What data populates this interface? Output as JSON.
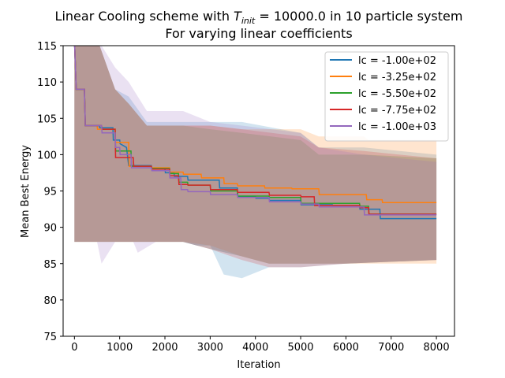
{
  "chart_data": {
    "type": "line",
    "title_line1_prefix": "Linear Cooling scheme with ",
    "title_T": "T",
    "title_subscript": "init",
    "title_line1_suffix": " = 10000.0 in 10 particle system",
    "title_line2": "For varying linear coefficients",
    "xlabel": "Iteration",
    "ylabel": "Mean Best Energy",
    "xlim": [
      -250,
      8400
    ],
    "ylim": [
      75,
      115
    ],
    "xticks": [
      0,
      1000,
      2000,
      3000,
      4000,
      5000,
      6000,
      7000,
      8000
    ],
    "yticks": [
      75,
      80,
      85,
      90,
      95,
      100,
      105,
      110,
      115
    ],
    "legend_position": "top-right",
    "series": [
      {
        "name": "lc = -1.00e+02",
        "color": "#1f77b4",
        "points": [
          [
            0,
            116
          ],
          [
            40,
            109
          ],
          [
            220,
            109
          ],
          [
            240,
            104
          ],
          [
            550,
            104
          ],
          [
            560,
            103.7
          ],
          [
            850,
            103.7
          ],
          [
            860,
            102
          ],
          [
            1000,
            102
          ],
          [
            1010,
            101.5
          ],
          [
            1150,
            101
          ],
          [
            1200,
            98.5
          ],
          [
            1700,
            98.5
          ],
          [
            1710,
            98
          ],
          [
            2000,
            98
          ],
          [
            2010,
            97.5
          ],
          [
            2200,
            97.5
          ],
          [
            2210,
            97
          ],
          [
            2500,
            97
          ],
          [
            2510,
            96.5
          ],
          [
            3200,
            96.5
          ],
          [
            3210,
            95.4
          ],
          [
            3600,
            95.4
          ],
          [
            3610,
            94.2
          ],
          [
            4000,
            94.2
          ],
          [
            4010,
            94.0
          ],
          [
            4300,
            94.0
          ],
          [
            4310,
            93.7
          ],
          [
            5000,
            93.7
          ],
          [
            5010,
            93.1
          ],
          [
            5700,
            93.1
          ],
          [
            5710,
            93.0
          ],
          [
            6300,
            93.0
          ],
          [
            6310,
            92.5
          ],
          [
            6750,
            92.5
          ],
          [
            6760,
            91.2
          ],
          [
            8000,
            91.2
          ]
        ],
        "band_upper": [
          [
            0,
            116
          ],
          [
            500,
            116
          ],
          [
            900,
            109
          ],
          [
            1200,
            108
          ],
          [
            1600,
            104.5
          ],
          [
            2400,
            104.5
          ],
          [
            2700,
            104.5
          ],
          [
            3000,
            104.5
          ],
          [
            3700,
            104.5
          ],
          [
            5000,
            103
          ],
          [
            5400,
            101
          ],
          [
            6400,
            101
          ],
          [
            8000,
            100
          ]
        ],
        "band_lower": [
          [
            0,
            88
          ],
          [
            500,
            88
          ],
          [
            900,
            88
          ],
          [
            1200,
            88
          ],
          [
            1600,
            88
          ],
          [
            2400,
            88
          ],
          [
            2700,
            87.5
          ],
          [
            3000,
            87.5
          ],
          [
            3300,
            83.5
          ],
          [
            3700,
            83
          ],
          [
            4300,
            84.5
          ],
          [
            5000,
            84.5
          ],
          [
            6000,
            85
          ],
          [
            8000,
            85.5
          ]
        ]
      },
      {
        "name": "lc = -3.25e+02",
        "color": "#ff7f0e",
        "points": [
          [
            0,
            116
          ],
          [
            40,
            109
          ],
          [
            220,
            109
          ],
          [
            240,
            104
          ],
          [
            500,
            104
          ],
          [
            510,
            103.5
          ],
          [
            900,
            103.5
          ],
          [
            910,
            101.7
          ],
          [
            1200,
            101.7
          ],
          [
            1210,
            98.4
          ],
          [
            1700,
            98.4
          ],
          [
            1710,
            98.2
          ],
          [
            2100,
            98.2
          ],
          [
            2110,
            97.6
          ],
          [
            2400,
            97.6
          ],
          [
            2410,
            97.3
          ],
          [
            2800,
            97.3
          ],
          [
            2810,
            96.8
          ],
          [
            3300,
            96.8
          ],
          [
            3310,
            96.0
          ],
          [
            3600,
            96.0
          ],
          [
            3610,
            95.7
          ],
          [
            4200,
            95.7
          ],
          [
            4210,
            95.4
          ],
          [
            4800,
            95.4
          ],
          [
            4810,
            95.3
          ],
          [
            5400,
            95.3
          ],
          [
            5410,
            94.5
          ],
          [
            6450,
            94.5
          ],
          [
            6460,
            93.8
          ],
          [
            6800,
            93.8
          ],
          [
            6810,
            93.4
          ],
          [
            8000,
            93.4
          ]
        ],
        "band_upper": [
          [
            0,
            116
          ],
          [
            500,
            116
          ],
          [
            900,
            109
          ],
          [
            1200,
            107
          ],
          [
            1600,
            104
          ],
          [
            2400,
            104
          ],
          [
            3000,
            104
          ],
          [
            3700,
            103.5
          ],
          [
            5000,
            103.5
          ],
          [
            5400,
            102.5
          ],
          [
            6400,
            102.5
          ],
          [
            6500,
            102
          ],
          [
            8000,
            102
          ]
        ],
        "band_lower": [
          [
            0,
            88
          ],
          [
            500,
            88
          ],
          [
            900,
            88
          ],
          [
            1200,
            88
          ],
          [
            1600,
            88
          ],
          [
            2400,
            88
          ],
          [
            3000,
            87.5
          ],
          [
            3700,
            86
          ],
          [
            4300,
            85
          ],
          [
            5000,
            85
          ],
          [
            6000,
            85
          ],
          [
            8000,
            85
          ]
        ]
      },
      {
        "name": "lc = -5.50e+02",
        "color": "#2ca02c",
        "points": [
          [
            0,
            116
          ],
          [
            40,
            109
          ],
          [
            220,
            109
          ],
          [
            240,
            104
          ],
          [
            600,
            104
          ],
          [
            610,
            103.5
          ],
          [
            900,
            103.5
          ],
          [
            910,
            100.5
          ],
          [
            1250,
            100.5
          ],
          [
            1260,
            98.4
          ],
          [
            1700,
            98.4
          ],
          [
            1710,
            98.1
          ],
          [
            2100,
            98.1
          ],
          [
            2110,
            97.4
          ],
          [
            2300,
            97.4
          ],
          [
            2310,
            96.2
          ],
          [
            2500,
            96.2
          ],
          [
            2510,
            95.8
          ],
          [
            3000,
            95.8
          ],
          [
            3010,
            95.0
          ],
          [
            3600,
            95.0
          ],
          [
            3610,
            94.3
          ],
          [
            4300,
            94.3
          ],
          [
            4310,
            94.1
          ],
          [
            5000,
            94.1
          ],
          [
            5010,
            93.3
          ],
          [
            6300,
            93.3
          ],
          [
            6310,
            92.9
          ],
          [
            6500,
            92.9
          ],
          [
            6510,
            91.8
          ],
          [
            8000,
            91.8
          ]
        ],
        "band_upper": [
          [
            0,
            116
          ],
          [
            500,
            116
          ],
          [
            900,
            109
          ],
          [
            1200,
            107
          ],
          [
            1600,
            104
          ],
          [
            2400,
            104
          ],
          [
            3000,
            103.5
          ],
          [
            3700,
            103
          ],
          [
            5000,
            102
          ],
          [
            5400,
            100
          ],
          [
            6400,
            100
          ],
          [
            8000,
            99.5
          ]
        ],
        "band_lower": [
          [
            0,
            88
          ],
          [
            500,
            88
          ],
          [
            900,
            88
          ],
          [
            1200,
            88
          ],
          [
            1600,
            88
          ],
          [
            2400,
            88
          ],
          [
            3000,
            87
          ],
          [
            3700,
            86
          ],
          [
            4300,
            85
          ],
          [
            5000,
            85
          ],
          [
            6000,
            85
          ],
          [
            8000,
            85.5
          ]
        ]
      },
      {
        "name": "lc = -7.75e+02",
        "color": "#d62728",
        "points": [
          [
            0,
            116
          ],
          [
            40,
            109
          ],
          [
            220,
            109
          ],
          [
            240,
            104
          ],
          [
            600,
            104
          ],
          [
            610,
            103.5
          ],
          [
            900,
            103.5
          ],
          [
            910,
            99.6
          ],
          [
            1300,
            99.6
          ],
          [
            1310,
            98.4
          ],
          [
            1700,
            98.4
          ],
          [
            1710,
            98.0
          ],
          [
            2100,
            98.0
          ],
          [
            2110,
            97.1
          ],
          [
            2300,
            97.1
          ],
          [
            2310,
            95.9
          ],
          [
            2500,
            95.9
          ],
          [
            2510,
            95.8
          ],
          [
            3000,
            95.8
          ],
          [
            3010,
            95.2
          ],
          [
            3600,
            95.2
          ],
          [
            3610,
            94.8
          ],
          [
            4300,
            94.8
          ],
          [
            4310,
            94.4
          ],
          [
            5000,
            94.4
          ],
          [
            5010,
            94.2
          ],
          [
            5300,
            94.2
          ],
          [
            5310,
            93.0
          ],
          [
            6300,
            93.0
          ],
          [
            6310,
            92.7
          ],
          [
            6500,
            92.7
          ],
          [
            6510,
            91.8
          ],
          [
            8000,
            91.8
          ]
        ],
        "band_upper": [
          [
            0,
            116
          ],
          [
            500,
            116
          ],
          [
            900,
            109
          ],
          [
            1200,
            107
          ],
          [
            1600,
            104
          ],
          [
            2400,
            104
          ],
          [
            3000,
            104
          ],
          [
            3700,
            103.5
          ],
          [
            5000,
            102.5
          ],
          [
            5400,
            101
          ],
          [
            6400,
            100.5
          ],
          [
            8000,
            99.5
          ]
        ],
        "band_lower": [
          [
            0,
            88
          ],
          [
            500,
            88
          ],
          [
            900,
            88
          ],
          [
            1200,
            88
          ],
          [
            1600,
            88
          ],
          [
            2400,
            88
          ],
          [
            3000,
            87
          ],
          [
            3700,
            85.5
          ],
          [
            4300,
            84.5
          ],
          [
            5000,
            84.5
          ],
          [
            6000,
            85
          ],
          [
            8000,
            85.5
          ]
        ]
      },
      {
        "name": "lc = -1.00e+03",
        "color": "#9467bd",
        "points": [
          [
            0,
            116
          ],
          [
            40,
            109
          ],
          [
            220,
            109
          ],
          [
            240,
            104
          ],
          [
            600,
            104
          ],
          [
            610,
            103.0
          ],
          [
            900,
            103.0
          ],
          [
            910,
            101.0
          ],
          [
            1000,
            101.0
          ],
          [
            1010,
            100.0
          ],
          [
            1250,
            100.0
          ],
          [
            1260,
            98.2
          ],
          [
            1700,
            98.2
          ],
          [
            1710,
            97.8
          ],
          [
            2100,
            97.8
          ],
          [
            2110,
            96.8
          ],
          [
            2350,
            96.8
          ],
          [
            2360,
            95.2
          ],
          [
            2500,
            95.2
          ],
          [
            2510,
            94.9
          ],
          [
            3000,
            94.9
          ],
          [
            3010,
            94.5
          ],
          [
            3600,
            94.5
          ],
          [
            3610,
            94.1
          ],
          [
            4300,
            94.1
          ],
          [
            4310,
            93.5
          ],
          [
            5000,
            93.5
          ],
          [
            5010,
            93.2
          ],
          [
            5400,
            93.2
          ],
          [
            5410,
            92.8
          ],
          [
            6400,
            92.8
          ],
          [
            6410,
            91.7
          ],
          [
            8000,
            91.7
          ]
        ],
        "band_upper": [
          [
            0,
            116
          ],
          [
            500,
            116
          ],
          [
            900,
            112
          ],
          [
            1200,
            110
          ],
          [
            1600,
            106
          ],
          [
            2200,
            106
          ],
          [
            2400,
            106
          ],
          [
            3000,
            104.5
          ],
          [
            3700,
            104
          ],
          [
            5000,
            103
          ],
          [
            5400,
            101
          ],
          [
            6400,
            100
          ],
          [
            8000,
            99
          ]
        ],
        "band_lower": [
          [
            0,
            88
          ],
          [
            500,
            88
          ],
          [
            600,
            85
          ],
          [
            900,
            88
          ],
          [
            1300,
            88
          ],
          [
            1400,
            86.5
          ],
          [
            1800,
            88
          ],
          [
            2400,
            88
          ],
          [
            3000,
            87
          ],
          [
            3700,
            86
          ],
          [
            4300,
            85
          ],
          [
            5000,
            85
          ],
          [
            6000,
            85
          ],
          [
            8000,
            85.5
          ]
        ]
      }
    ]
  }
}
